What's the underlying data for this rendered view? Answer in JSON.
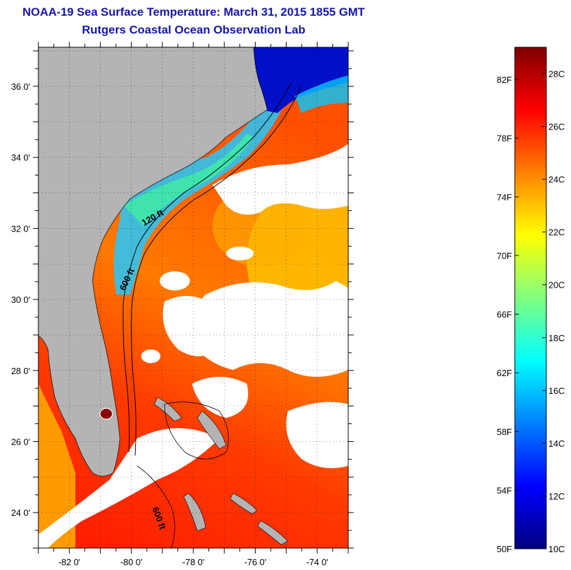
{
  "header": {
    "title": "NOAA-19 Sea Surface Temperature:  March 31, 2015 1855 GMT",
    "subtitle": "Rutgers Coastal Ocean Observation Lab"
  },
  "map": {
    "lat_range": [
      23,
      37.1
    ],
    "lon_range": [
      -83,
      -73
    ],
    "lat_ticks": [
      {
        "value": 36,
        "label": "36 0'"
      },
      {
        "value": 34,
        "label": "34 0'"
      },
      {
        "value": 32,
        "label": "32 0'"
      },
      {
        "value": 30,
        "label": "30 0'"
      },
      {
        "value": 28,
        "label": "28 0'"
      },
      {
        "value": 26,
        "label": "26 0'"
      },
      {
        "value": 24,
        "label": "24 0'"
      }
    ],
    "lon_ticks": [
      {
        "value": -82,
        "label": "-82 0'"
      },
      {
        "value": -80,
        "label": "-80 0'"
      },
      {
        "value": -78,
        "label": "-78 0'"
      },
      {
        "value": -76,
        "label": "-76 0'"
      },
      {
        "value": -74,
        "label": "-74 0'"
      }
    ],
    "contour_labels": [
      "120 ft",
      "600 ft",
      "600 ft"
    ],
    "colors": {
      "land": "#b4b4b4",
      "cloud": "#ffffff"
    }
  },
  "colorbar": {
    "range_c": [
      10,
      29
    ],
    "celsius_labels": [
      {
        "value": 28,
        "label": "28C"
      },
      {
        "value": 26,
        "label": "26C"
      },
      {
        "value": 24,
        "label": "24C"
      },
      {
        "value": 22,
        "label": "22C"
      },
      {
        "value": 20,
        "label": "20C"
      },
      {
        "value": 18,
        "label": "18C"
      },
      {
        "value": 16,
        "label": "16C"
      },
      {
        "value": 14,
        "label": "14C"
      },
      {
        "value": 12,
        "label": "12C"
      },
      {
        "value": 10,
        "label": "10C"
      }
    ],
    "fahrenheit_labels": [
      {
        "value": 82,
        "label": "82F"
      },
      {
        "value": 78,
        "label": "78F"
      },
      {
        "value": 74,
        "label": "74F"
      },
      {
        "value": 70,
        "label": "70F"
      },
      {
        "value": 66,
        "label": "66F"
      },
      {
        "value": 62,
        "label": "62F"
      },
      {
        "value": 58,
        "label": "58F"
      },
      {
        "value": 54,
        "label": "54F"
      },
      {
        "value": 50,
        "label": "50F"
      }
    ],
    "gradient": [
      "#00007f",
      "#0000ff",
      "#0080ff",
      "#00ffff",
      "#80ff80",
      "#ffff00",
      "#ff8000",
      "#ff0000",
      "#7f0000"
    ]
  }
}
